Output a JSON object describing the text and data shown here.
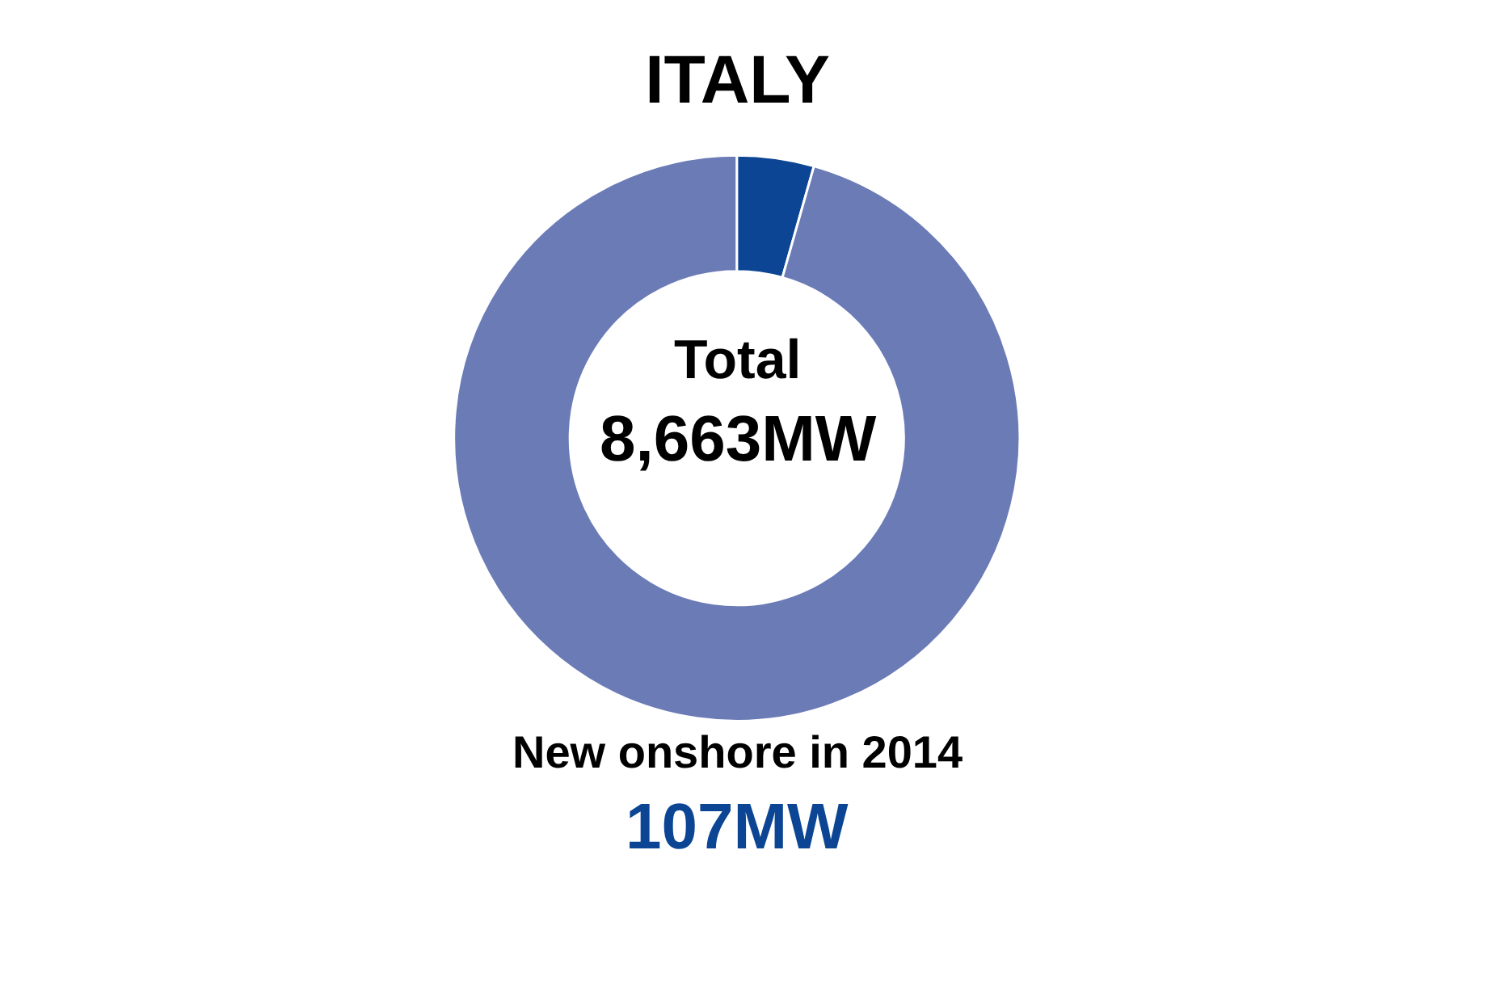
{
  "chart_data": {
    "type": "donut",
    "title": "ITALY",
    "categories": [
      null,
      null
    ],
    "values": [
      4.4,
      95.6
    ],
    "colors": [
      "#0c4594",
      "#6b7bb6"
    ],
    "annotations": [
      "Total",
      "8,663MW",
      "New onshore in 2014",
      "107MW"
    ]
  }
}
